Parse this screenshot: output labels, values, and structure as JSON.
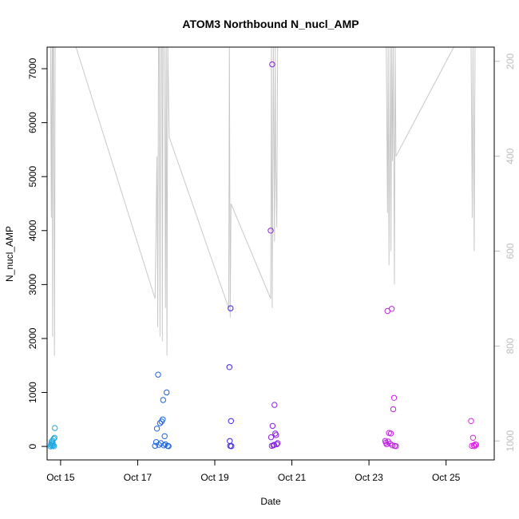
{
  "chart_data": {
    "type": "scatter",
    "title": "ATOM3 Northbound N_nucl_AMP",
    "xlabel": "Date",
    "ylabel": "N_nucl_AMP",
    "x_ticks": [
      "Oct 15",
      "Oct 17",
      "Oct 19",
      "Oct 21",
      "Oct 23",
      "Oct 25"
    ],
    "x_tick_days": [
      15,
      17,
      19,
      21,
      23,
      25
    ],
    "xlim": [
      14.65,
      26.25
    ],
    "ylim": [
      -250,
      7400
    ],
    "y_ticks": [
      0,
      1000,
      2000,
      3000,
      4000,
      5000,
      6000,
      7000
    ],
    "y_right_ticks": [
      200,
      400,
      600,
      800,
      1000
    ],
    "y_right_lim": [
      1040,
      170
    ],
    "grid": false,
    "legend": "none",
    "line_color": "#c8c8c8",
    "right_tick_color": "#bdbdbd",
    "colors": [
      "#1fa7e0",
      "#1a62e6",
      "#3a22e6",
      "#8a1fe6",
      "#c21fe6",
      "#e01fe6"
    ],
    "points": [
      {
        "x": 14.74,
        "y": 0,
        "c": 0
      },
      {
        "x": 14.75,
        "y": 30,
        "c": 0
      },
      {
        "x": 14.76,
        "y": 60,
        "c": 0
      },
      {
        "x": 14.77,
        "y": 90,
        "c": 0
      },
      {
        "x": 14.78,
        "y": 10,
        "c": 0
      },
      {
        "x": 14.79,
        "y": 110,
        "c": 0
      },
      {
        "x": 14.8,
        "y": 50,
        "c": 0
      },
      {
        "x": 14.81,
        "y": 20,
        "c": 0
      },
      {
        "x": 14.82,
        "y": 140,
        "c": 0
      },
      {
        "x": 14.83,
        "y": 5,
        "c": 0
      },
      {
        "x": 14.84,
        "y": 160,
        "c": 0
      },
      {
        "x": 14.85,
        "y": 340,
        "c": 0
      },
      {
        "x": 17.45,
        "y": 10,
        "c": 1
      },
      {
        "x": 17.48,
        "y": 80,
        "c": 1
      },
      {
        "x": 17.5,
        "y": 330,
        "c": 1
      },
      {
        "x": 17.53,
        "y": 1330,
        "c": 1
      },
      {
        "x": 17.55,
        "y": 30,
        "c": 1
      },
      {
        "x": 17.58,
        "y": 430,
        "c": 1
      },
      {
        "x": 17.6,
        "y": 60,
        "c": 1
      },
      {
        "x": 17.62,
        "y": 460,
        "c": 1
      },
      {
        "x": 17.65,
        "y": 500,
        "c": 1
      },
      {
        "x": 17.66,
        "y": 860,
        "c": 1
      },
      {
        "x": 17.68,
        "y": 20,
        "c": 1
      },
      {
        "x": 17.7,
        "y": 190,
        "c": 1
      },
      {
        "x": 17.72,
        "y": 40,
        "c": 1
      },
      {
        "x": 17.75,
        "y": 1000,
        "c": 1
      },
      {
        "x": 17.78,
        "y": 10,
        "c": 1
      },
      {
        "x": 17.8,
        "y": 5,
        "c": 1
      },
      {
        "x": 19.38,
        "y": 1470,
        "c": 2
      },
      {
        "x": 19.39,
        "y": 100,
        "c": 2
      },
      {
        "x": 19.4,
        "y": 10,
        "c": 2
      },
      {
        "x": 19.41,
        "y": 2560,
        "c": 2
      },
      {
        "x": 19.42,
        "y": 470,
        "c": 2
      },
      {
        "x": 19.43,
        "y": 5,
        "c": 2
      },
      {
        "x": 20.45,
        "y": 4000,
        "c": 3
      },
      {
        "x": 20.46,
        "y": 170,
        "c": 3
      },
      {
        "x": 20.48,
        "y": 10,
        "c": 3
      },
      {
        "x": 20.49,
        "y": 7080,
        "c": 3
      },
      {
        "x": 20.5,
        "y": 380,
        "c": 3
      },
      {
        "x": 20.52,
        "y": 20,
        "c": 3
      },
      {
        "x": 20.54,
        "y": 30,
        "c": 3
      },
      {
        "x": 20.55,
        "y": 770,
        "c": 3
      },
      {
        "x": 20.57,
        "y": 240,
        "c": 3
      },
      {
        "x": 20.59,
        "y": 210,
        "c": 3
      },
      {
        "x": 20.61,
        "y": 40,
        "c": 3
      },
      {
        "x": 20.63,
        "y": 60,
        "c": 3
      },
      {
        "x": 23.42,
        "y": 100,
        "c": 4
      },
      {
        "x": 23.44,
        "y": 70,
        "c": 4
      },
      {
        "x": 23.46,
        "y": 40,
        "c": 4
      },
      {
        "x": 23.48,
        "y": 2510,
        "c": 4
      },
      {
        "x": 23.5,
        "y": 90,
        "c": 4
      },
      {
        "x": 23.52,
        "y": 250,
        "c": 4
      },
      {
        "x": 23.55,
        "y": 50,
        "c": 4
      },
      {
        "x": 23.57,
        "y": 240,
        "c": 4
      },
      {
        "x": 23.59,
        "y": 2550,
        "c": 4
      },
      {
        "x": 23.61,
        "y": 20,
        "c": 4
      },
      {
        "x": 23.63,
        "y": 690,
        "c": 4
      },
      {
        "x": 23.65,
        "y": 900,
        "c": 4
      },
      {
        "x": 23.67,
        "y": 10,
        "c": 4
      },
      {
        "x": 23.7,
        "y": 5,
        "c": 4
      },
      {
        "x": 25.65,
        "y": 470,
        "c": 5
      },
      {
        "x": 25.67,
        "y": 10,
        "c": 5
      },
      {
        "x": 25.7,
        "y": 160,
        "c": 5
      },
      {
        "x": 25.72,
        "y": 20,
        "c": 5
      },
      {
        "x": 25.74,
        "y": 5,
        "c": 5
      },
      {
        "x": 25.76,
        "y": 40,
        "c": 5
      },
      {
        "x": 25.78,
        "y": 30,
        "c": 5
      }
    ],
    "line_right": [
      [
        14.74,
        170
      ],
      [
        14.76,
        530
      ],
      [
        14.77,
        300
      ],
      [
        14.78,
        170
      ],
      [
        14.79,
        780
      ],
      [
        14.8,
        170
      ],
      [
        14.82,
        170
      ],
      [
        14.84,
        820
      ],
      [
        14.85,
        500
      ],
      [
        14.86,
        170
      ],
      [
        15.4,
        170
      ],
      [
        17.45,
        700
      ],
      [
        17.48,
        530
      ],
      [
        17.5,
        400
      ],
      [
        17.52,
        760
      ],
      [
        17.54,
        170
      ],
      [
        17.56,
        170
      ],
      [
        17.58,
        780
      ],
      [
        17.6,
        170
      ],
      [
        17.63,
        170
      ],
      [
        17.64,
        790
      ],
      [
        17.66,
        170
      ],
      [
        17.7,
        170
      ],
      [
        17.72,
        720
      ],
      [
        17.74,
        170
      ],
      [
        17.76,
        820
      ],
      [
        17.78,
        170
      ],
      [
        17.82,
        360
      ],
      [
        19.36,
        720
      ],
      [
        19.38,
        170
      ],
      [
        19.4,
        740
      ],
      [
        19.42,
        500
      ],
      [
        20.45,
        700
      ],
      [
        20.47,
        170
      ],
      [
        20.49,
        720
      ],
      [
        20.52,
        170
      ],
      [
        20.55,
        580
      ],
      [
        20.57,
        170
      ],
      [
        20.58,
        400
      ],
      [
        20.61,
        550
      ],
      [
        20.63,
        170
      ],
      [
        23.45,
        170
      ],
      [
        23.48,
        520
      ],
      [
        23.5,
        170
      ],
      [
        23.52,
        630
      ],
      [
        23.55,
        170
      ],
      [
        23.57,
        600
      ],
      [
        23.59,
        170
      ],
      [
        23.61,
        410
      ],
      [
        23.63,
        170
      ],
      [
        23.66,
        670
      ],
      [
        23.68,
        170
      ],
      [
        23.7,
        400
      ],
      [
        25.2,
        170
      ],
      [
        25.65,
        170
      ],
      [
        25.68,
        530
      ],
      [
        25.7,
        170
      ],
      [
        25.73,
        600
      ],
      [
        25.75,
        170
      ],
      [
        25.78,
        170
      ]
    ]
  }
}
